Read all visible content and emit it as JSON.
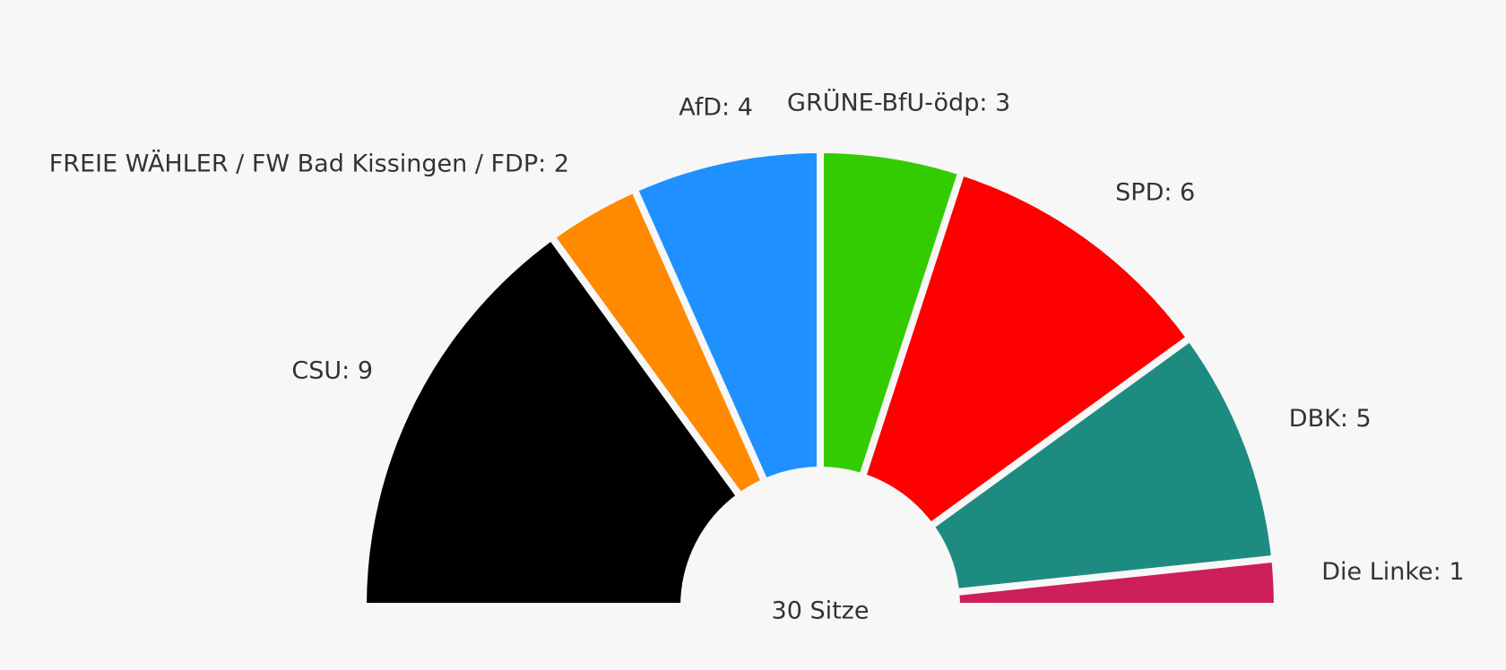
{
  "chart_data": {
    "type": "semicircle_donut",
    "values": [
      9,
      2,
      4,
      3,
      6,
      5,
      1
    ],
    "value_labels": [
      "CSU: 9",
      "FREIE WÄHLER / FW Bad Kissingen / FDP: 2",
      "AfD: 4",
      "GRÜNE-BfU-ödp: 3",
      "SPD: 6",
      "DBK: 5",
      "Die Linke: 1"
    ],
    "colors": [
      "#000000",
      "#ff8a00",
      "#1e90ff",
      "#33cc00",
      "#ff0000",
      "#1e8b80",
      "#cc1f5c"
    ],
    "total_label": "30 Sitze"
  }
}
